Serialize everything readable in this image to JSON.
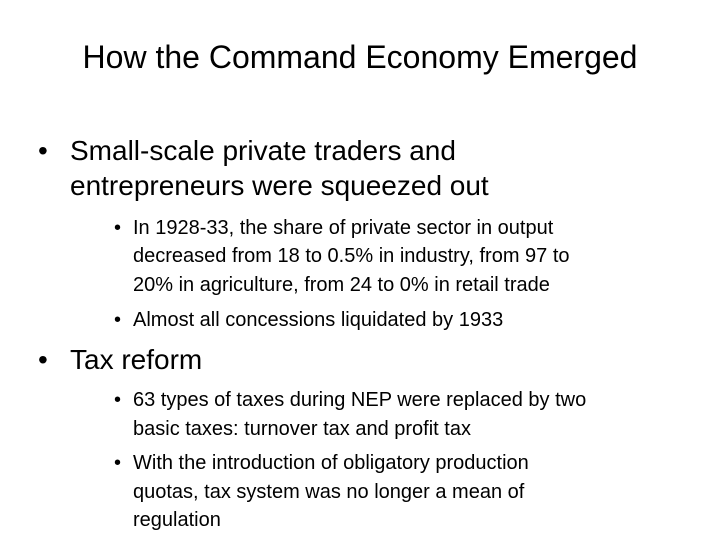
{
  "title": "How the Command Economy Emerged",
  "bullets": [
    {
      "lines": [
        "Small-scale private traders and",
        "entrepreneurs were squeezed out"
      ],
      "sub": [
        {
          "lines": [
            "In 1928-33, the share of private sector in output",
            "decreased from 18 to 0.5% in industry, from 97 to",
            "20% in agriculture, from 24 to 0% in retail trade"
          ]
        },
        {
          "lines": [
            "Almost all concessions liquidated by 1933"
          ]
        }
      ]
    },
    {
      "lines": [
        "Tax reform"
      ],
      "sub": [
        {
          "lines": [
            "63 types of taxes during NEP were replaced by two",
            "basic taxes: turnover tax and profit tax"
          ]
        },
        {
          "lines": [
            "With the introduction of obligatory production",
            "quotas, tax system was no longer a mean of",
            "regulation"
          ]
        }
      ]
    }
  ]
}
